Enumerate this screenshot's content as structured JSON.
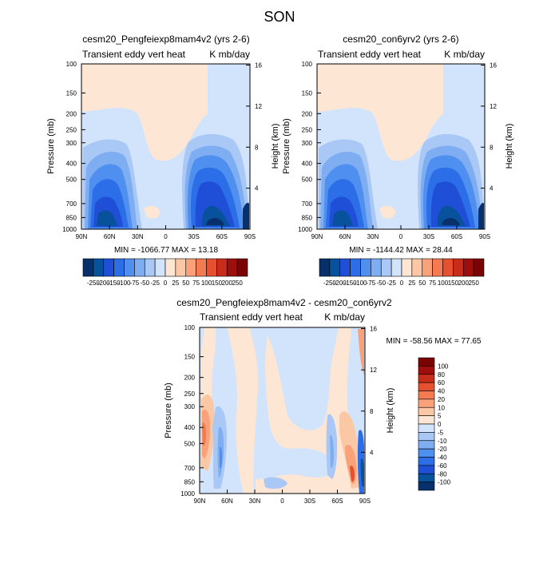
{
  "figure": {
    "super_title": "SON",
    "y_axis_label": "Pressure (mb)",
    "y2_axis_label": "Height (km)",
    "pressure_ticks": [
      "100",
      "150",
      "200",
      "250",
      "300",
      "400",
      "500",
      "700",
      "850",
      "1000"
    ],
    "height_ticks": [
      "16",
      "12",
      "8",
      "4"
    ],
    "lat_ticks": [
      "90N",
      "60N",
      "30N",
      "0",
      "30S",
      "60S",
      "90S"
    ]
  },
  "chart_data": [
    {
      "type": "heatmap",
      "title": "cesm20_Pengfeiexp8mam4v2 (yrs 2-6)",
      "left_label": "Transient eddy vert heat",
      "right_label": "K mb/day",
      "stats": "MIN = -1066.77  MAX =  13.18",
      "xlabel": "",
      "ylabel": "Pressure (mb)",
      "y2label": "Height (km)",
      "xlim": [
        90,
        -90
      ],
      "ylim": [
        1000,
        100
      ],
      "colorbar_labels": [
        "-250",
        "-200",
        "-150",
        "-100",
        "-75",
        "-50",
        "-25",
        "0",
        "25",
        "50",
        "75",
        "100",
        "150",
        "200",
        "250"
      ]
    },
    {
      "type": "heatmap",
      "title": "cesm20_con6yrv2 (yrs 2-6)",
      "left_label": "Transient eddy vert heat",
      "right_label": "K mb/day",
      "stats": "MIN = -1144.42  MAX =  28.44",
      "xlabel": "",
      "ylabel": "Pressure (mb)",
      "y2label": "Height (km)",
      "xlim": [
        90,
        -90
      ],
      "ylim": [
        1000,
        100
      ],
      "colorbar_labels": [
        "-250",
        "-200",
        "-150",
        "-100",
        "-75",
        "-50",
        "-25",
        "0",
        "25",
        "50",
        "75",
        "100",
        "150",
        "200",
        "250"
      ]
    },
    {
      "type": "heatmap",
      "title": "cesm20_Pengfeiexp8mam4v2 - cesm20_con6yrv2",
      "left_label": "Transient eddy vert heat",
      "right_label": "K mb/day",
      "stats": "MIN = -58.56  MAX =  77.65",
      "xlabel": "",
      "ylabel": "Pressure (mb)",
      "y2label": "Height (km)",
      "xlim": [
        90,
        -90
      ],
      "ylim": [
        1000,
        100
      ],
      "colorbar_labels": [
        "100",
        "80",
        "60",
        "40",
        "20",
        "10",
        "5",
        "0",
        "-5",
        "-10",
        "-20",
        "-40",
        "-60",
        "-80",
        "-100"
      ]
    }
  ],
  "palettes": {
    "blue_to_red": [
      "#08306b",
      "#08519c",
      "#1f4fd6",
      "#2b6ee8",
      "#4e8ff0",
      "#7fadf2",
      "#a9c8f5",
      "#d2e4fb",
      "#fde6d4",
      "#fbc8a6",
      "#f9a27a",
      "#f47a52",
      "#e6502e",
      "#c72d18",
      "#a00d0d",
      "#7a0303"
    ],
    "panel_background_blue": "#d2e4fb",
    "panel_background_salmon": "#fde6d4"
  }
}
